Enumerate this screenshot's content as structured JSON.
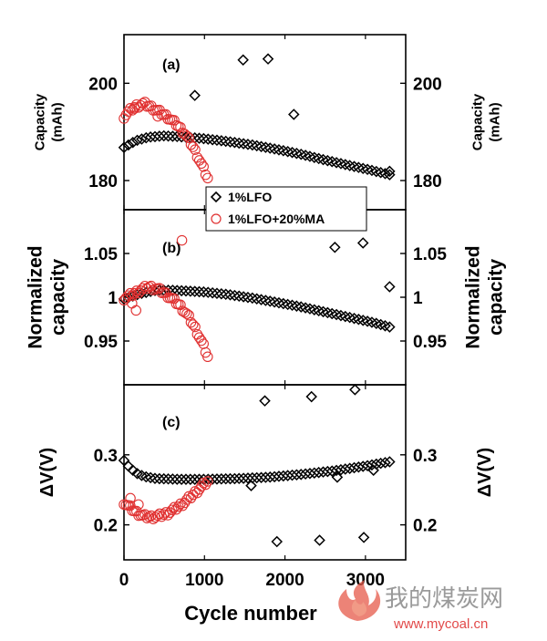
{
  "chart_data": {
    "type": "scatter",
    "xlabel": "Cycle number",
    "xlim": [
      0,
      3500
    ],
    "xticks": [
      0,
      1000,
      2000,
      3000
    ],
    "legend": {
      "placement": "between panels (a) and (b), center",
      "entries": [
        "1%LFO",
        "1%LFO+20%MA"
      ]
    },
    "colors": {
      "1%LFO": "#000000",
      "1%LFO+20%MA": "#e03030"
    },
    "panels": [
      {
        "label": "(a)",
        "ylabel": "Capacity\n(mAh)",
        "ylim": [
          174,
          210
        ],
        "yticks": [
          180,
          200
        ],
        "series": [
          {
            "name": "1%LFO",
            "marker": "diamond",
            "trend": [
              [
                0,
                186.8
              ],
              [
                150,
                188.2
              ],
              [
                300,
                188.9
              ],
              [
                500,
                189.2
              ],
              [
                700,
                189.0
              ],
              [
                1000,
                188.6
              ],
              [
                1300,
                188.0
              ],
              [
                1600,
                187.3
              ],
              [
                1900,
                186.4
              ],
              [
                2200,
                185.4
              ],
              [
                2500,
                184.2
              ],
              [
                2800,
                183.1
              ],
              [
                3050,
                182.2
              ],
              [
                3300,
                181.2
              ]
            ],
            "outliers": [
              [
                880,
                197.5
              ],
              [
                1480,
                204.8
              ],
              [
                1790,
                205.0
              ],
              [
                2110,
                193.6
              ],
              [
                3300,
                181.9
              ]
            ]
          },
          {
            "name": "1%LFO+20%MA",
            "marker": "circle",
            "trend": [
              [
                0,
                193.2
              ],
              [
                60,
                194.2
              ],
              [
                150,
                195.3
              ],
              [
                250,
                195.8
              ],
              [
                350,
                195.0
              ],
              [
                450,
                194.0
              ],
              [
                550,
                193.0
              ],
              [
                650,
                191.6
              ],
              [
                750,
                189.8
              ],
              [
                850,
                187.2
              ],
              [
                930,
                184.5
              ],
              [
                1000,
                182.0
              ],
              [
                1040,
                180.5
              ]
            ],
            "outliers": [
              [
                130,
                194.8
              ],
              [
                420,
                193.2
              ]
            ]
          }
        ]
      },
      {
        "label": "(b)",
        "ylabel": "Normalized\ncapacity",
        "ylim": [
          0.9,
          1.1
        ],
        "yticks": [
          0.95,
          1,
          1.05
        ],
        "ytick_labels": [
          "0.95",
          "1",
          "1.05"
        ],
        "series": [
          {
            "name": "1%LFO",
            "marker": "diamond",
            "trend": [
              [
                0,
                0.998
              ],
              [
                200,
                1.004
              ],
              [
                400,
                1.008
              ],
              [
                600,
                1.008
              ],
              [
                800,
                1.007
              ],
              [
                1000,
                1.006
              ],
              [
                1300,
                1.003
              ],
              [
                1600,
                0.999
              ],
              [
                1900,
                0.994
              ],
              [
                2200,
                0.989
              ],
              [
                2500,
                0.983
              ],
              [
                2800,
                0.977
              ],
              [
                3100,
                0.971
              ],
              [
                3300,
                0.966
              ]
            ],
            "outliers": [
              [
                2620,
                1.057
              ],
              [
                2970,
                1.062
              ],
              [
                3300,
                1.012
              ]
            ]
          },
          {
            "name": "1%LFO+20%MA",
            "marker": "circle",
            "trend": [
              [
                0,
                0.999
              ],
              [
                100,
                1.003
              ],
              [
                200,
                1.008
              ],
              [
                300,
                1.012
              ],
              [
                400,
                1.01
              ],
              [
                500,
                1.005
              ],
              [
                600,
                0.998
              ],
              [
                700,
                0.99
              ],
              [
                800,
                0.978
              ],
              [
                900,
                0.962
              ],
              [
                950,
                0.952
              ],
              [
                1000,
                0.942
              ],
              [
                1040,
                0.932
              ]
            ],
            "outliers": [
              [
                100,
                0.993
              ],
              [
                150,
                0.985
              ],
              [
                720,
                1.065
              ]
            ]
          }
        ]
      },
      {
        "label": "(c)",
        "ylabel": "ΔV(V)",
        "ylim": [
          0.15,
          0.4
        ],
        "yticks": [
          0.2,
          0.3
        ],
        "series": [
          {
            "name": "1%LFO",
            "marker": "diamond",
            "trend": [
              [
                0,
                0.292
              ],
              [
                60,
                0.283
              ],
              [
                150,
                0.274
              ],
              [
                250,
                0.269
              ],
              [
                400,
                0.266
              ],
              [
                700,
                0.265
              ],
              [
                1000,
                0.265
              ],
              [
                1400,
                0.266
              ],
              [
                1800,
                0.268
              ],
              [
                2200,
                0.272
              ],
              [
                2600,
                0.277
              ],
              [
                3000,
                0.284
              ],
              [
                3300,
                0.29
              ]
            ],
            "outliers": [
              [
                1750,
                0.377
              ],
              [
                2330,
                0.383
              ],
              [
                2870,
                0.393
              ],
              [
                1900,
                0.176
              ],
              [
                2430,
                0.178
              ],
              [
                2980,
                0.182
              ],
              [
                1580,
                0.256
              ],
              [
                2650,
                0.268
              ],
              [
                3100,
                0.278
              ]
            ]
          },
          {
            "name": "1%LFO+20%MA",
            "marker": "circle",
            "trend": [
              [
                0,
                0.232
              ],
              [
                60,
                0.226
              ],
              [
                150,
                0.218
              ],
              [
                250,
                0.212
              ],
              [
                350,
                0.211
              ],
              [
                450,
                0.213
              ],
              [
                550,
                0.217
              ],
              [
                650,
                0.224
              ],
              [
                750,
                0.232
              ],
              [
                850,
                0.242
              ],
              [
                950,
                0.253
              ],
              [
                1040,
                0.262
              ]
            ],
            "outliers": [
              [
                80,
                0.238
              ],
              [
                180,
                0.229
              ]
            ]
          }
        ]
      }
    ]
  },
  "watermark": {
    "site_name": "我的煤炭网",
    "url": "www.mycoal.cn"
  }
}
